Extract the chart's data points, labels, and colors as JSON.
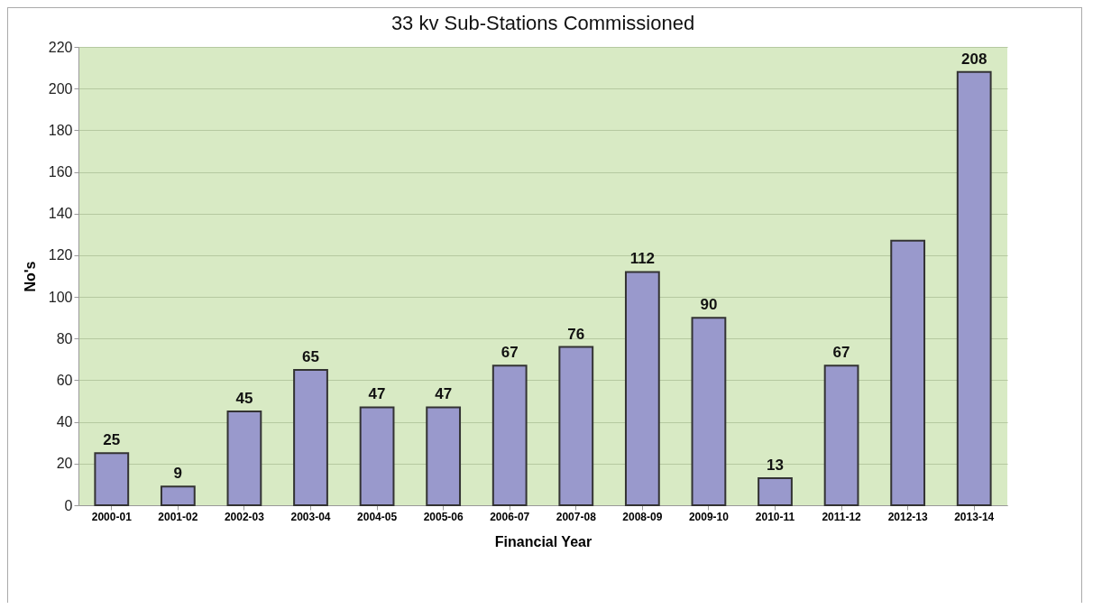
{
  "chart_data": {
    "type": "bar",
    "title": "33 kv Sub-Stations Commissioned",
    "xlabel": "Financial Year",
    "ylabel": "No's",
    "categories": [
      "2000-01",
      "2001-02",
      "2002-03",
      "2003-04",
      "2004-05",
      "2005-06",
      "2006-07",
      "2007-08",
      "2008-09",
      "2009-10",
      "2010-11",
      "2011-12",
      "2012-13",
      "2013-14"
    ],
    "values": [
      25,
      9,
      45,
      65,
      47,
      47,
      67,
      76,
      112,
      90,
      13,
      67,
      127,
      208
    ],
    "value_labels": [
      "25",
      "9",
      "45",
      "65",
      "47",
      "47",
      "67",
      "76",
      "112",
      "90",
      "13",
      "67",
      null,
      "208"
    ],
    "color": "#9999cc",
    "ylim": [
      0,
      220
    ],
    "yticks": [
      0,
      20,
      40,
      60,
      80,
      100,
      120,
      140,
      160,
      180,
      200,
      220
    ],
    "grid": "y"
  }
}
